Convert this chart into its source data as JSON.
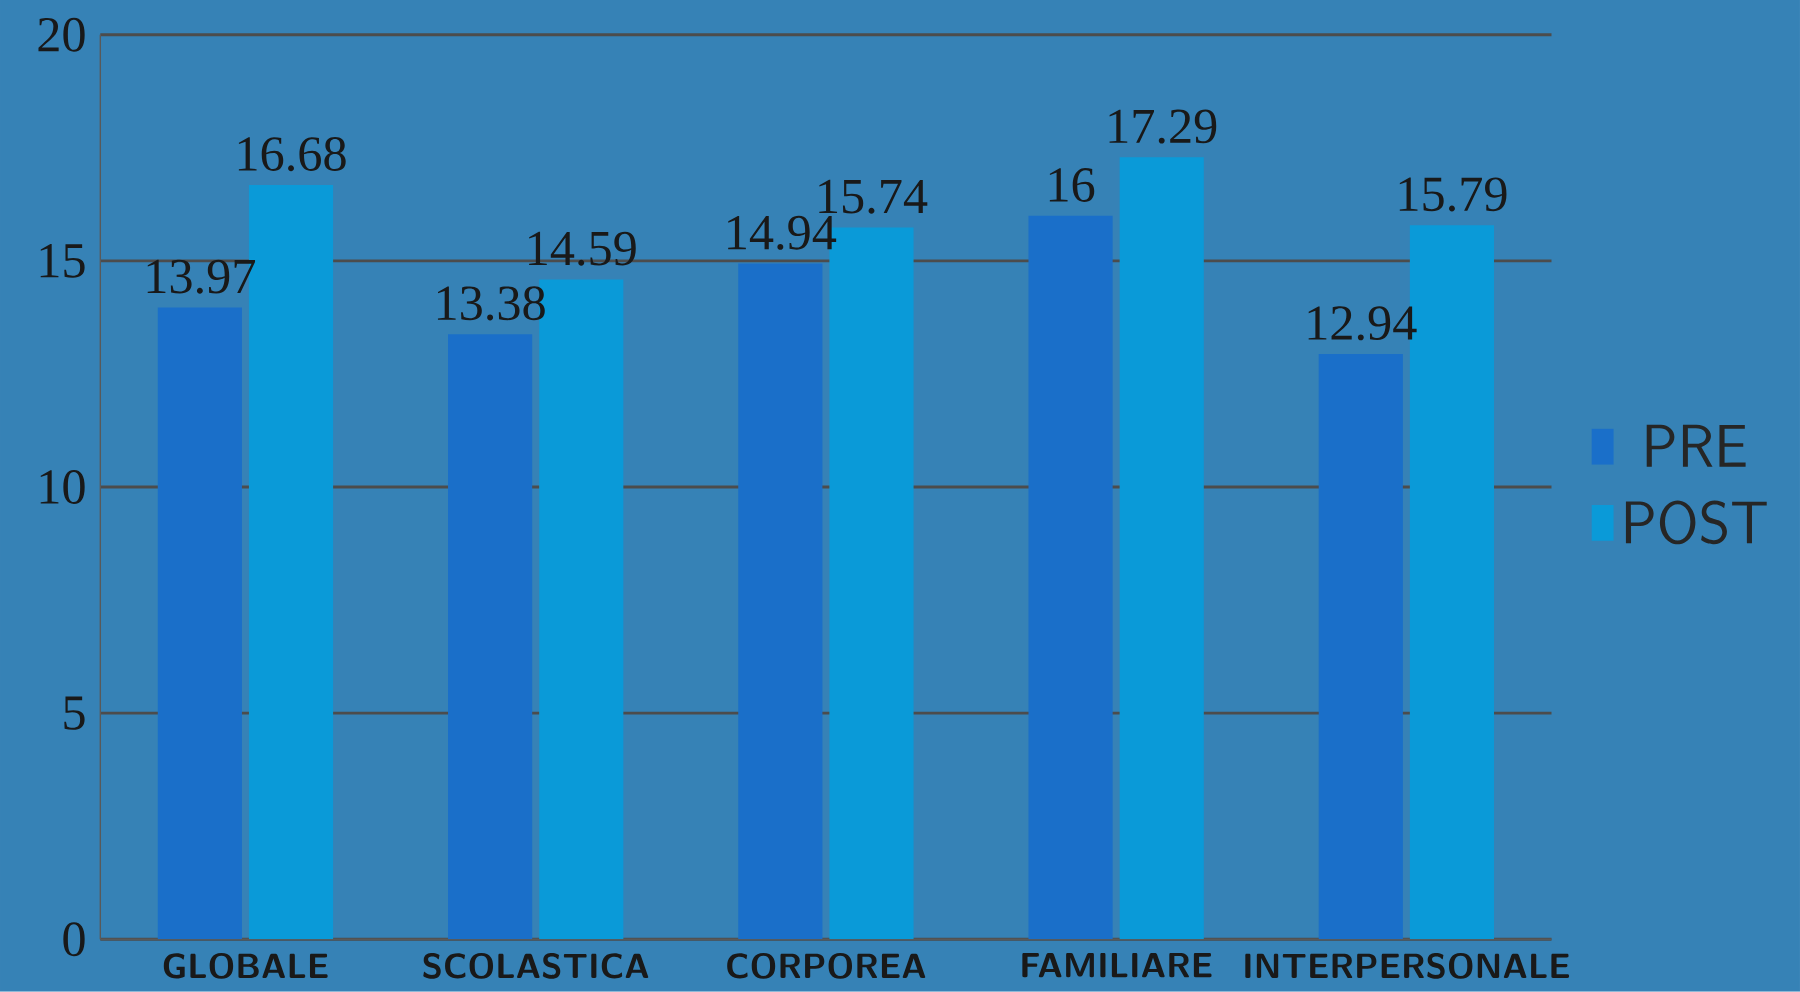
{
  "chart_data": {
    "type": "bar",
    "categories": [
      "GLOBALE",
      "SCOLASTICA",
      "CORPOREA",
      "FAMILIARE",
      "INTERPERSONALE"
    ],
    "series": [
      {
        "name": "PRE",
        "color": "#1a6fc9",
        "values": [
          13.97,
          13.38,
          14.94,
          16,
          12.94
        ]
      },
      {
        "name": "POST",
        "color": "#0a9ad8",
        "values": [
          16.68,
          14.59,
          15.74,
          17.29,
          15.79
        ]
      }
    ],
    "ylim": [
      0,
      20
    ],
    "yticks": [
      0,
      5,
      10,
      15,
      20
    ],
    "grid": "y",
    "legend": "right",
    "data_labels": true
  }
}
